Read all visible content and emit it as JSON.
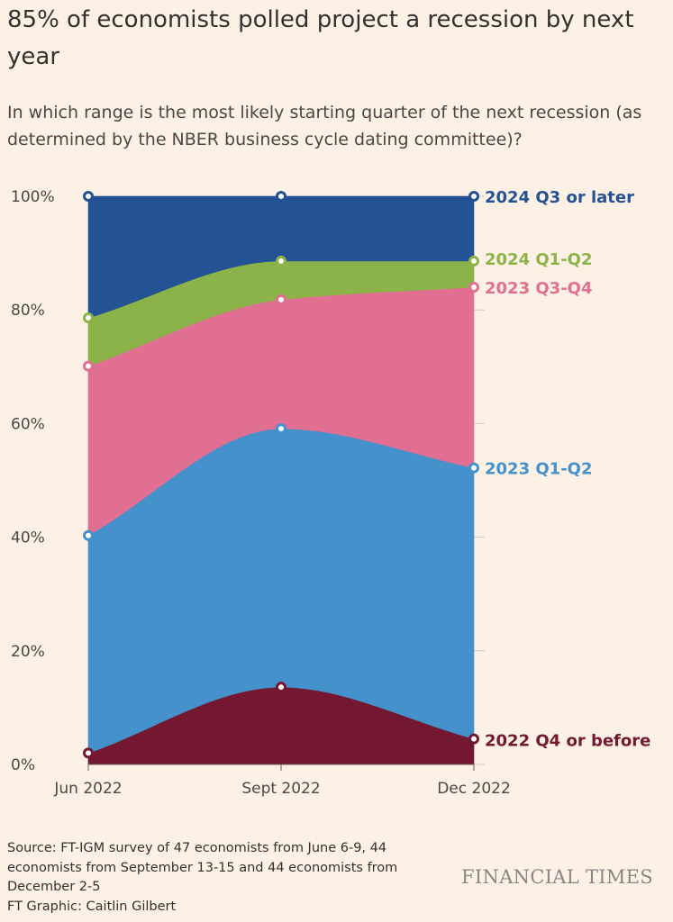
{
  "header": {
    "title": "85% of economists polled project a recession by next year",
    "subtitle": "In which range is the most likely starting quarter of the next recession (as determined by the NBER business cycle dating committee)?"
  },
  "footer": {
    "source": "Source: FT-IGM survey of 47 economists from June 6-9, 44 economists from September 13-15 and 44 economists from December 2-5",
    "credit": "FT Graphic: Caitlin Gilbert",
    "logo": "FINANCIAL TIMES"
  },
  "chart_data": {
    "type": "area",
    "stacked": true,
    "categories": [
      "Jun 2022",
      "Sept 2022",
      "Dec 2022"
    ],
    "ylim": [
      0,
      100
    ],
    "yticks": [
      0,
      20,
      40,
      60,
      80,
      100
    ],
    "ytick_labels": [
      "0%",
      "20%",
      "40%",
      "60%",
      "80%",
      "100%"
    ],
    "series": [
      {
        "name": "2022 Q4 or before",
        "color": "#731830",
        "values": [
          2,
          13.6,
          4.5
        ]
      },
      {
        "name": "2023 Q1-Q2",
        "color": "#4491cb",
        "values": [
          38.3,
          45.5,
          47.7
        ]
      },
      {
        "name": "2023 Q3-Q4",
        "color": "#e06f92",
        "values": [
          29.8,
          22.7,
          31.8
        ]
      },
      {
        "name": "2024 Q1-Q2",
        "color": "#8cb24a",
        "values": [
          8.5,
          6.8,
          4.6
        ]
      },
      {
        "name": "2024 Q3 or later",
        "color": "#235395",
        "values": [
          21.4,
          11.4,
          11.4
        ]
      }
    ]
  }
}
